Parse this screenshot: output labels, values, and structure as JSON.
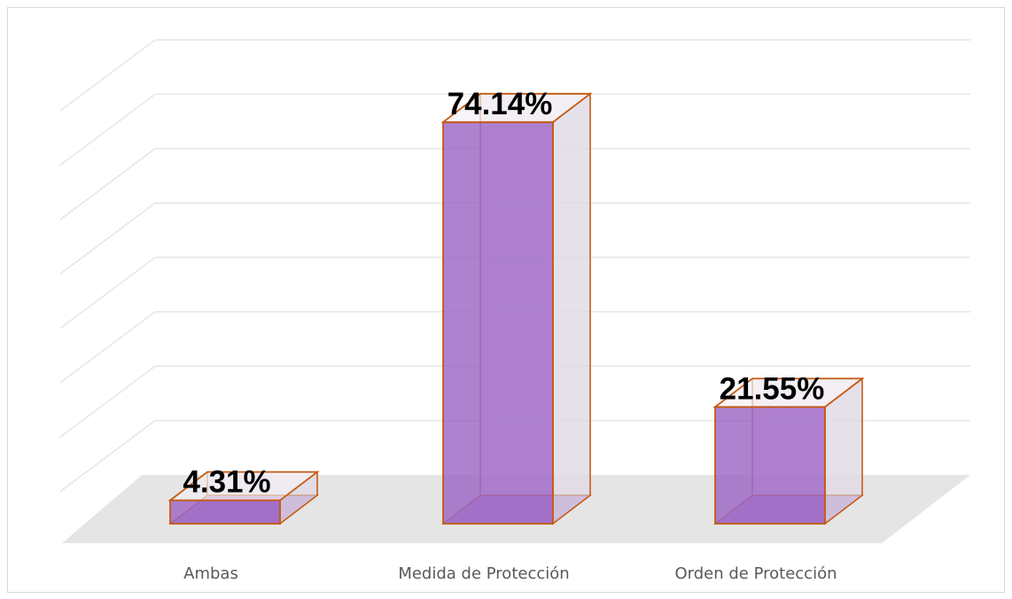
{
  "chart_data": {
    "type": "bar3d",
    "categories": [
      "Ambas",
      "Medida de Protección",
      "Orden de Protección"
    ],
    "values": [
      4.31,
      74.14,
      21.55
    ],
    "value_labels": [
      "4.31%",
      "74.14%",
      "21.55%"
    ],
    "color": "#9b63c4",
    "edge_color": "#c55a11",
    "ylim": [
      0,
      80
    ],
    "yticks": [
      0,
      10,
      20,
      30,
      40,
      50,
      60,
      70,
      80
    ],
    "grid": true
  }
}
